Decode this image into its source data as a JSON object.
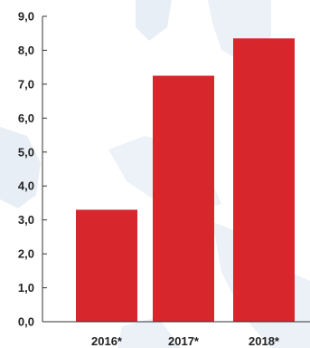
{
  "chart_data": {
    "type": "bar",
    "categories": [
      "2016*",
      "2017*",
      "2018*"
    ],
    "values": [
      3.3,
      7.25,
      8.35
    ],
    "title": "",
    "xlabel": "",
    "ylabel": "",
    "ylim": [
      0,
      9
    ],
    "yticks": [
      0,
      1,
      2,
      3,
      4,
      5,
      6,
      7,
      8,
      9
    ],
    "ytick_labels": [
      "0,0",
      "1,0",
      "2,0",
      "3,0",
      "4,0",
      "5,0",
      "6,0",
      "7,0",
      "8,0",
      "9,0"
    ],
    "grid": false,
    "legend": "none",
    "bar_color": "#d7262c",
    "background_map_color": "#dde7f1"
  }
}
